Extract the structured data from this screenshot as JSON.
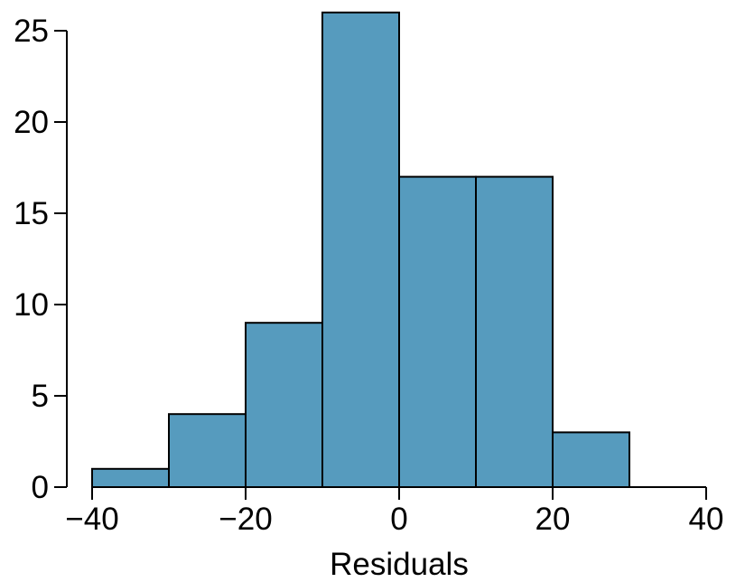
{
  "chart_data": {
    "type": "bar",
    "subtype": "histogram",
    "bins": [
      {
        "from": -40,
        "to": -30,
        "count": 1
      },
      {
        "from": -30,
        "to": -20,
        "count": 4
      },
      {
        "from": -20,
        "to": -10,
        "count": 9
      },
      {
        "from": -10,
        "to": 0,
        "count": 26
      },
      {
        "from": 0,
        "to": 10,
        "count": 17
      },
      {
        "from": 10,
        "to": 20,
        "count": 17
      },
      {
        "from": 20,
        "to": 30,
        "count": 3
      }
    ],
    "title": "",
    "xlabel": "Residuals",
    "ylabel": "",
    "xlim": [
      -40,
      40
    ],
    "ylim": [
      0,
      25
    ],
    "xticks": [
      -40,
      -20,
      0,
      20,
      40
    ],
    "xtick_labels": [
      "−40",
      "−20",
      "0",
      "20",
      "40"
    ],
    "yticks": [
      0,
      5,
      10,
      15,
      20,
      25
    ],
    "ytick_labels": [
      "0",
      "5",
      "10",
      "15",
      "20",
      "25"
    ],
    "grid": false,
    "legend": "none",
    "bar_color": "#569bbe",
    "edge_color": "#000000"
  }
}
